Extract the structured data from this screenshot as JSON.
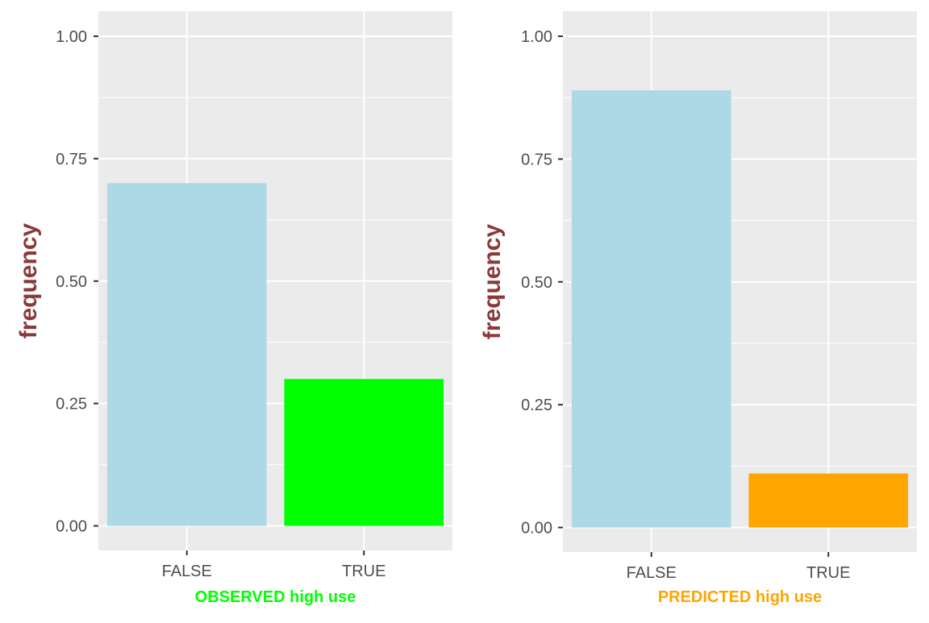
{
  "chart_data": [
    {
      "type": "bar",
      "categories": [
        "FALSE",
        "TRUE"
      ],
      "values": [
        0.7,
        0.3
      ],
      "bar_colors": [
        "#add8e6",
        "#00ff00"
      ],
      "xlabel": "OBSERVED high use",
      "xlabel_color": "#00ff00",
      "ylabel": "frequency",
      "ylabel_color": "#8b3a3a",
      "yticks": [
        "0.00",
        "0.25",
        "0.50",
        "0.75",
        "1.00"
      ],
      "ylim": [
        0,
        1
      ],
      "grid": true,
      "panel_background": "#ebebeb"
    },
    {
      "type": "bar",
      "categories": [
        "FALSE",
        "TRUE"
      ],
      "values": [
        0.89,
        0.11
      ],
      "bar_colors": [
        "#add8e6",
        "#ffa500"
      ],
      "xlabel": "PREDICTED high use",
      "xlabel_color": "#ffa500",
      "ylabel": "frequency",
      "ylabel_color": "#8b3a3a",
      "yticks": [
        "0.00",
        "0.25",
        "0.50",
        "0.75",
        "1.00"
      ],
      "ylim": [
        0,
        1
      ],
      "grid": true,
      "panel_background": "#ebebeb"
    }
  ]
}
